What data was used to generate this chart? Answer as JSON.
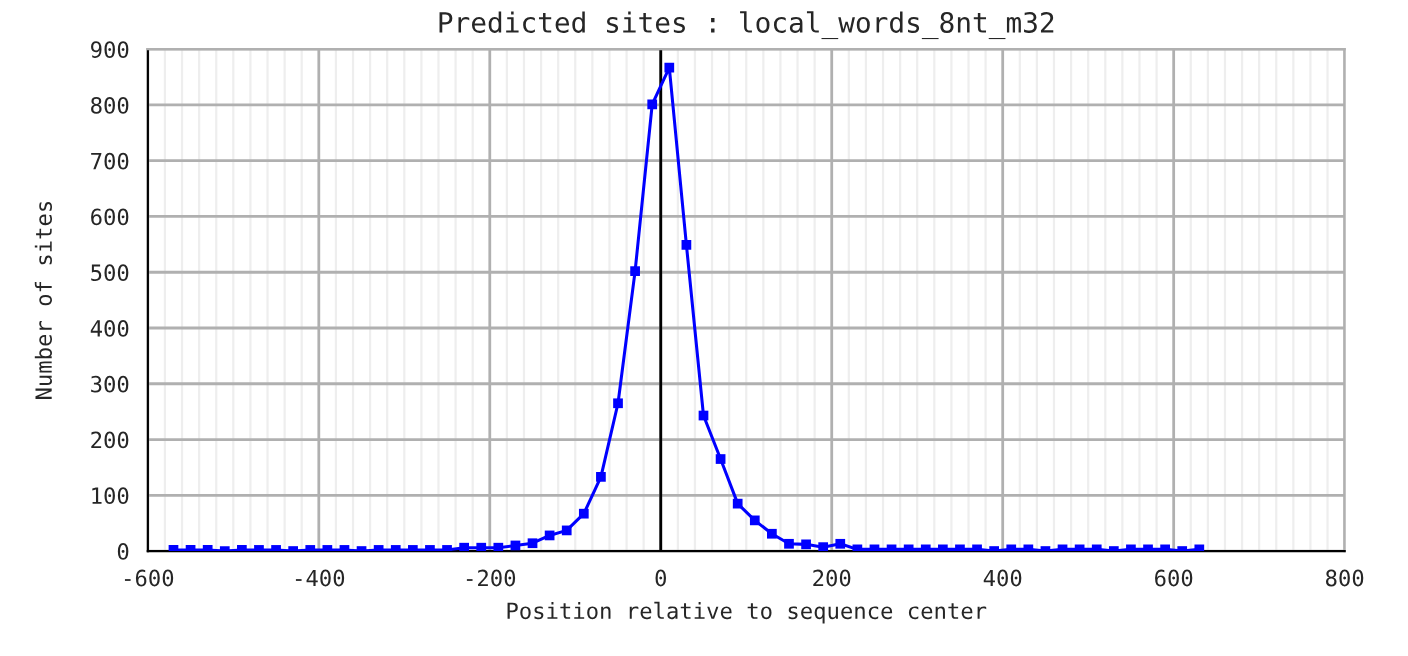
{
  "chart_data": {
    "type": "line",
    "title": "Predicted sites : local_words_8nt_m32",
    "xlabel": "Position relative to sequence center",
    "ylabel": "Number of sites",
    "x": [
      -570,
      -550,
      -530,
      -510,
      -490,
      -470,
      -450,
      -430,
      -410,
      -390,
      -370,
      -350,
      -330,
      -310,
      -290,
      -270,
      -250,
      -230,
      -210,
      -190,
      -170,
      -150,
      -130,
      -110,
      -90,
      -70,
      -50,
      -30,
      -10,
      10,
      30,
      50,
      70,
      90,
      110,
      130,
      150,
      170,
      190,
      210,
      230,
      250,
      270,
      290,
      310,
      330,
      350,
      370,
      390,
      410,
      430,
      450,
      470,
      490,
      510,
      530,
      550,
      570,
      590,
      610,
      630
    ],
    "series": [
      {
        "color": "#0000ff",
        "values": [
          2,
          2,
          2,
          0,
          2,
          2,
          2,
          0,
          2,
          2,
          2,
          0,
          2,
          2,
          2,
          2,
          2,
          6,
          6,
          6,
          10,
          14,
          28,
          37,
          67,
          133,
          265,
          502,
          801,
          867,
          549,
          243,
          165,
          85,
          55,
          31,
          13,
          12,
          7,
          13,
          3,
          3,
          3,
          3,
          3,
          3,
          3,
          3,
          0,
          3,
          3,
          0,
          3,
          3,
          3,
          0,
          3,
          3,
          3,
          0,
          3
        ]
      }
    ],
    "xlim": [
      -600,
      800
    ],
    "xticks": [
      -600,
      -400,
      -200,
      0,
      200,
      400,
      600,
      800
    ],
    "ylim": [
      0,
      900
    ],
    "yticks": [
      0,
      100,
      200,
      300,
      400,
      500,
      600,
      700,
      800,
      900
    ],
    "grid": true,
    "marker": "square",
    "line_style": "solid",
    "legend": false,
    "ref_lines": [
      {
        "axis": "x",
        "value": 0,
        "color": "#000000"
      }
    ]
  }
}
